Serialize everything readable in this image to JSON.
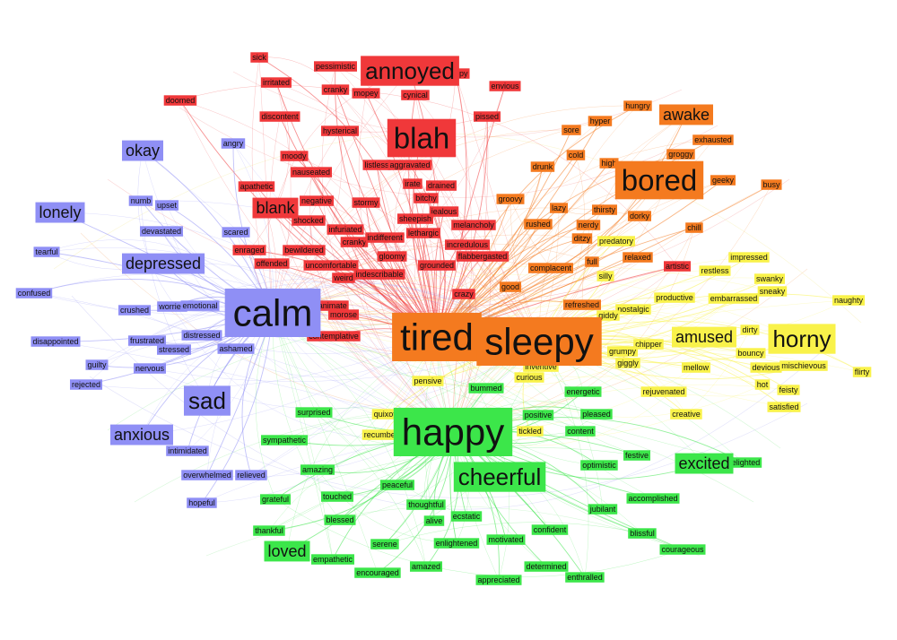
{
  "colors": {
    "red": "#f0383a",
    "orange": "#f47a1f",
    "yellow": "#f9f24a",
    "blue": "#8f8ff5",
    "green": "#3ce64a",
    "text": "#111111"
  },
  "hubs": {
    "red": "tired",
    "orange": "tired",
    "yellow": "sleepy",
    "blue": "calm",
    "green": "happy"
  },
  "nodes": [
    {
      "label": "sick",
      "group": "red",
      "size": 1
    },
    {
      "label": "pessimistic",
      "group": "red",
      "size": 1
    },
    {
      "label": "annoyed",
      "group": "red",
      "size": 3
    },
    {
      "label": "crappy",
      "group": "red",
      "size": 1
    },
    {
      "label": "irritated",
      "group": "red",
      "size": 1
    },
    {
      "label": "cranky",
      "group": "red",
      "size": 1
    },
    {
      "label": "mopey",
      "group": "red",
      "size": 1
    },
    {
      "label": "doomed",
      "group": "red",
      "size": 1
    },
    {
      "label": "cynical",
      "group": "red",
      "size": 1
    },
    {
      "label": "envious",
      "group": "red",
      "size": 1
    },
    {
      "label": "discontent",
      "group": "red",
      "size": 1
    },
    {
      "label": "hysterical",
      "group": "red",
      "size": 1
    },
    {
      "label": "blah",
      "group": "red",
      "size": 4
    },
    {
      "label": "pissed",
      "group": "red",
      "size": 1
    },
    {
      "label": "moody",
      "group": "red",
      "size": 1
    },
    {
      "label": "nauseated",
      "group": "red",
      "size": 1
    },
    {
      "label": "listless",
      "group": "red",
      "size": 1
    },
    {
      "label": "aggravated",
      "group": "red",
      "size": 1
    },
    {
      "label": "apathetic",
      "group": "red",
      "size": 1
    },
    {
      "label": "irate",
      "group": "red",
      "size": 1
    },
    {
      "label": "drained",
      "group": "red",
      "size": 1
    },
    {
      "label": "negative",
      "group": "red",
      "size": 1
    },
    {
      "label": "bitchy",
      "group": "red",
      "size": 1
    },
    {
      "label": "blank",
      "group": "red",
      "size": 2
    },
    {
      "label": "stormy",
      "group": "red",
      "size": 1
    },
    {
      "label": "jealous",
      "group": "red",
      "size": 1
    },
    {
      "label": "shocked",
      "group": "red",
      "size": 1
    },
    {
      "label": "sheepish",
      "group": "red",
      "size": 1
    },
    {
      "label": "melancholy",
      "group": "red",
      "size": 1
    },
    {
      "label": "infuriated",
      "group": "red",
      "size": 1
    },
    {
      "label": "lethargic",
      "group": "red",
      "size": 1
    },
    {
      "label": "cranky",
      "group": "red",
      "size": 1
    },
    {
      "label": "indifferent",
      "group": "red",
      "size": 1
    },
    {
      "label": "incredulous",
      "group": "red",
      "size": 1
    },
    {
      "label": "enraged",
      "group": "red",
      "size": 1
    },
    {
      "label": "bewildered",
      "group": "red",
      "size": 1
    },
    {
      "label": "gloomy",
      "group": "red",
      "size": 1
    },
    {
      "label": "offended",
      "group": "red",
      "size": 1
    },
    {
      "label": "indescribable",
      "group": "red",
      "size": 1
    },
    {
      "label": "grounded",
      "group": "red",
      "size": 1
    },
    {
      "label": "flabbergasted",
      "group": "red",
      "size": 1
    },
    {
      "label": "uncomfortable",
      "group": "red",
      "size": 1
    },
    {
      "label": "weird",
      "group": "red",
      "size": 1
    },
    {
      "label": "crazy",
      "group": "red",
      "size": 1
    },
    {
      "label": "artistic",
      "group": "red",
      "size": 1
    },
    {
      "label": "exanimate",
      "group": "red",
      "size": 1
    },
    {
      "label": "morose",
      "group": "red",
      "size": 1
    },
    {
      "label": "contemplative",
      "group": "red",
      "size": 1
    },
    {
      "label": "hungry",
      "group": "orange",
      "size": 1
    },
    {
      "label": "awake",
      "group": "orange",
      "size": 2
    },
    {
      "label": "hyper",
      "group": "orange",
      "size": 1
    },
    {
      "label": "sore",
      "group": "orange",
      "size": 1
    },
    {
      "label": "exhausted",
      "group": "orange",
      "size": 1
    },
    {
      "label": "groggy",
      "group": "orange",
      "size": 1
    },
    {
      "label": "cold",
      "group": "orange",
      "size": 1
    },
    {
      "label": "drunk",
      "group": "orange",
      "size": 1
    },
    {
      "label": "high",
      "group": "orange",
      "size": 1
    },
    {
      "label": "bored",
      "group": "orange",
      "size": 4
    },
    {
      "label": "geeky",
      "group": "orange",
      "size": 1
    },
    {
      "label": "busy",
      "group": "orange",
      "size": 1
    },
    {
      "label": "groovy",
      "group": "orange",
      "size": 1
    },
    {
      "label": "lazy",
      "group": "orange",
      "size": 1
    },
    {
      "label": "thirsty",
      "group": "orange",
      "size": 1
    },
    {
      "label": "rushed",
      "group": "orange",
      "size": 1
    },
    {
      "label": "nerdy",
      "group": "orange",
      "size": 1
    },
    {
      "label": "dorky",
      "group": "orange",
      "size": 1
    },
    {
      "label": "ditzy",
      "group": "orange",
      "size": 1
    },
    {
      "label": "chill",
      "group": "orange",
      "size": 1
    },
    {
      "label": "complacent",
      "group": "orange",
      "size": 1
    },
    {
      "label": "full",
      "group": "orange",
      "size": 1
    },
    {
      "label": "relaxed",
      "group": "orange",
      "size": 1
    },
    {
      "label": "good",
      "group": "orange",
      "size": 1
    },
    {
      "label": "refreshed",
      "group": "orange",
      "size": 1
    },
    {
      "label": "tired",
      "group": "orange",
      "size": 5
    },
    {
      "label": "sleepy",
      "group": "orange",
      "size": 5
    },
    {
      "label": "predatory",
      "group": "yellow",
      "size": 1
    },
    {
      "label": "silly",
      "group": "yellow",
      "size": 1
    },
    {
      "label": "restless",
      "group": "yellow",
      "size": 1
    },
    {
      "label": "impressed",
      "group": "yellow",
      "size": 1
    },
    {
      "label": "swanky",
      "group": "yellow",
      "size": 1
    },
    {
      "label": "sneaky",
      "group": "yellow",
      "size": 1
    },
    {
      "label": "naughty",
      "group": "yellow",
      "size": 1
    },
    {
      "label": "productive",
      "group": "yellow",
      "size": 1
    },
    {
      "label": "embarrassed",
      "group": "yellow",
      "size": 1
    },
    {
      "label": "nostalgic",
      "group": "yellow",
      "size": 1
    },
    {
      "label": "giddy",
      "group": "yellow",
      "size": 1
    },
    {
      "label": "amused",
      "group": "yellow",
      "size": 2
    },
    {
      "label": "horny",
      "group": "yellow",
      "size": 3
    },
    {
      "label": "dirty",
      "group": "yellow",
      "size": 1
    },
    {
      "label": "chipper",
      "group": "yellow",
      "size": 1
    },
    {
      "label": "grumpy",
      "group": "yellow",
      "size": 1
    },
    {
      "label": "bouncy",
      "group": "yellow",
      "size": 1
    },
    {
      "label": "giggly",
      "group": "yellow",
      "size": 1
    },
    {
      "label": "mellow",
      "group": "yellow",
      "size": 1
    },
    {
      "label": "devious",
      "group": "yellow",
      "size": 1
    },
    {
      "label": "mischievous",
      "group": "yellow",
      "size": 1
    },
    {
      "label": "flirty",
      "group": "yellow",
      "size": 1
    },
    {
      "label": "hot",
      "group": "yellow",
      "size": 1
    },
    {
      "label": "rejuvenated",
      "group": "yellow",
      "size": 1
    },
    {
      "label": "feisty",
      "group": "yellow",
      "size": 1
    },
    {
      "label": "satisfied",
      "group": "yellow",
      "size": 1
    },
    {
      "label": "creative",
      "group": "yellow",
      "size": 1
    },
    {
      "label": "inventive",
      "group": "yellow",
      "size": 1
    },
    {
      "label": "curious",
      "group": "yellow",
      "size": 1
    },
    {
      "label": "quixotic",
      "group": "yellow",
      "size": 1
    },
    {
      "label": "recumbent",
      "group": "yellow",
      "size": 1
    },
    {
      "label": "tickled",
      "group": "yellow",
      "size": 1
    },
    {
      "label": "pensive",
      "group": "yellow",
      "size": 1
    },
    {
      "label": "okay",
      "group": "blue",
      "size": 2
    },
    {
      "label": "angry",
      "group": "blue",
      "size": 1
    },
    {
      "label": "lonely",
      "group": "blue",
      "size": 2
    },
    {
      "label": "numb",
      "group": "blue",
      "size": 1
    },
    {
      "label": "upset",
      "group": "blue",
      "size": 1
    },
    {
      "label": "devastated",
      "group": "blue",
      "size": 1
    },
    {
      "label": "scared",
      "group": "blue",
      "size": 1
    },
    {
      "label": "tearful",
      "group": "blue",
      "size": 1
    },
    {
      "label": "depressed",
      "group": "blue",
      "size": 2
    },
    {
      "label": "confused",
      "group": "blue",
      "size": 1
    },
    {
      "label": "crushed",
      "group": "blue",
      "size": 1
    },
    {
      "label": "worried",
      "group": "blue",
      "size": 1
    },
    {
      "label": "emotional",
      "group": "blue",
      "size": 1
    },
    {
      "label": "calm",
      "group": "blue",
      "size": 5
    },
    {
      "label": "disappointed",
      "group": "blue",
      "size": 1
    },
    {
      "label": "frustrated",
      "group": "blue",
      "size": 1
    },
    {
      "label": "distressed",
      "group": "blue",
      "size": 1
    },
    {
      "label": "stressed",
      "group": "blue",
      "size": 1
    },
    {
      "label": "ashamed",
      "group": "blue",
      "size": 1
    },
    {
      "label": "guilty",
      "group": "blue",
      "size": 1
    },
    {
      "label": "nervous",
      "group": "blue",
      "size": 1
    },
    {
      "label": "rejected",
      "group": "blue",
      "size": 1
    },
    {
      "label": "sad",
      "group": "blue",
      "size": 3
    },
    {
      "label": "anxious",
      "group": "blue",
      "size": 2
    },
    {
      "label": "intimidated",
      "group": "blue",
      "size": 1
    },
    {
      "label": "overwhelmed",
      "group": "blue",
      "size": 1
    },
    {
      "label": "relieved",
      "group": "blue",
      "size": 1
    },
    {
      "label": "hopeful",
      "group": "blue",
      "size": 1
    },
    {
      "label": "surprised",
      "group": "green",
      "size": 1
    },
    {
      "label": "sympathetic",
      "group": "green",
      "size": 1
    },
    {
      "label": "happy",
      "group": "green",
      "size": 5
    },
    {
      "label": "bummed",
      "group": "green",
      "size": 1
    },
    {
      "label": "energetic",
      "group": "green",
      "size": 1
    },
    {
      "label": "positive",
      "group": "green",
      "size": 1
    },
    {
      "label": "pleased",
      "group": "green",
      "size": 1
    },
    {
      "label": "content",
      "group": "green",
      "size": 1
    },
    {
      "label": "festive",
      "group": "green",
      "size": 1
    },
    {
      "label": "optimistic",
      "group": "green",
      "size": 1
    },
    {
      "label": "excited",
      "group": "green",
      "size": 2
    },
    {
      "label": "delighted",
      "group": "green",
      "size": 1
    },
    {
      "label": "cheerful",
      "group": "green",
      "size": 3
    },
    {
      "label": "amazing",
      "group": "green",
      "size": 1
    },
    {
      "label": "touched",
      "group": "green",
      "size": 1
    },
    {
      "label": "peaceful",
      "group": "green",
      "size": 1
    },
    {
      "label": "accomplished",
      "group": "green",
      "size": 1
    },
    {
      "label": "grateful",
      "group": "green",
      "size": 1
    },
    {
      "label": "thoughtful",
      "group": "green",
      "size": 1
    },
    {
      "label": "jubilant",
      "group": "green",
      "size": 1
    },
    {
      "label": "blessed",
      "group": "green",
      "size": 1
    },
    {
      "label": "alive",
      "group": "green",
      "size": 1
    },
    {
      "label": "ecstatic",
      "group": "green",
      "size": 1
    },
    {
      "label": "thankful",
      "group": "green",
      "size": 1
    },
    {
      "label": "confident",
      "group": "green",
      "size": 1
    },
    {
      "label": "blissful",
      "group": "green",
      "size": 1
    },
    {
      "label": "loved",
      "group": "green",
      "size": 2
    },
    {
      "label": "serene",
      "group": "green",
      "size": 1
    },
    {
      "label": "enlightened",
      "group": "green",
      "size": 1
    },
    {
      "label": "motivated",
      "group": "green",
      "size": 1
    },
    {
      "label": "courageous",
      "group": "green",
      "size": 1
    },
    {
      "label": "empathetic",
      "group": "green",
      "size": 1
    },
    {
      "label": "determined",
      "group": "green",
      "size": 1
    },
    {
      "label": "encouraged",
      "group": "green",
      "size": 1
    },
    {
      "label": "amazed",
      "group": "green",
      "size": 1
    },
    {
      "label": "enthralled",
      "group": "green",
      "size": 1
    },
    {
      "label": "appreciated",
      "group": "green",
      "size": 1
    }
  ]
}
